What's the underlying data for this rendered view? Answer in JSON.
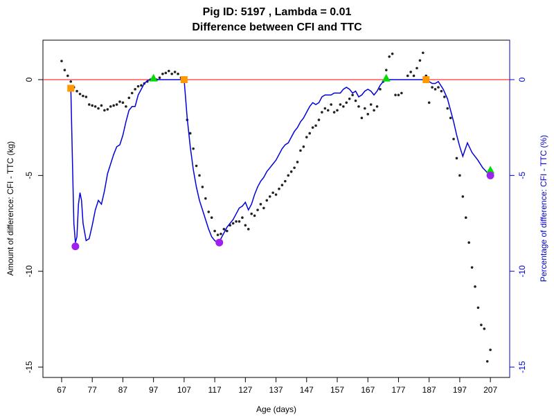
{
  "chart_data": {
    "type": "line",
    "title": "Pig ID: 5197 , Lambda = 0.01",
    "subtitle": "Difference between CFI and TTC",
    "x_label": "Age (days)",
    "y_label": "Amount of difference: CFI - TTC (kg)",
    "y2_label": "Percentage of difference: CFI - TTC (%)",
    "y2_color": "#0000cc",
    "xlim": [
      60.9,
      213.3
    ],
    "ylim": [
      -15.54,
      2.06
    ],
    "y2lim": [
      -15.54,
      2.06
    ],
    "xticks": [
      67,
      77,
      87,
      97,
      107,
      117,
      127,
      137,
      147,
      157,
      167,
      177,
      187,
      197,
      207
    ],
    "yticks": [
      -15,
      -10,
      -5,
      0
    ],
    "y2ticks": [
      -15,
      -10,
      -5,
      0
    ],
    "reference_line": {
      "value": 0,
      "color": "#ff0000"
    },
    "series": [
      {
        "style": "points",
        "color": "#222222",
        "x": [
          67,
          68,
          69,
          70,
          71,
          72,
          73,
          74,
          75,
          76,
          77,
          78,
          79,
          80,
          81,
          82,
          83,
          84,
          85,
          86,
          87,
          88,
          89,
          90,
          91,
          92,
          93,
          94,
          95,
          96,
          97,
          98,
          99,
          100,
          101,
          102,
          103,
          104,
          105,
          106,
          107,
          108,
          109,
          110,
          111,
          112,
          113,
          114,
          115,
          116,
          117,
          118,
          119,
          120,
          121,
          122,
          123,
          124,
          125,
          126,
          127,
          128,
          129,
          130,
          131,
          132,
          133,
          134,
          135,
          136,
          137,
          138,
          139,
          140,
          141,
          142,
          143,
          144,
          145,
          146,
          147,
          148,
          149,
          150,
          151,
          152,
          153,
          154,
          155,
          156,
          157,
          158,
          159,
          160,
          161,
          162,
          163,
          164,
          165,
          166,
          167,
          168,
          169,
          170,
          171,
          172,
          173,
          174,
          175,
          176,
          177,
          178,
          180,
          181,
          182,
          183,
          184,
          185,
          186,
          187,
          188,
          189,
          190,
          191,
          192,
          193,
          194,
          195,
          196,
          197,
          198,
          199,
          200,
          201,
          202,
          203,
          204,
          205,
          206,
          207
        ],
        "values": [
          0.97,
          0.5,
          0.2,
          -0.1,
          -0.4,
          -0.6,
          -0.75,
          -0.85,
          -0.9,
          -1.3,
          -1.35,
          -1.4,
          -1.5,
          -1.35,
          -1.6,
          -1.55,
          -1.4,
          -1.35,
          -1.3,
          -1.15,
          -1.2,
          -1.4,
          -0.95,
          -0.7,
          -0.5,
          -0.35,
          -0.3,
          -0.2,
          -0.1,
          0.0,
          0.1,
          0.0,
          0.1,
          0.3,
          0.35,
          0.45,
          0.3,
          0.4,
          0.3,
          0.1,
          0.0,
          -2.1,
          -2.8,
          -3.6,
          -4.5,
          -5.0,
          -5.6,
          -6.2,
          -6.9,
          -7.2,
          -7.9,
          -8.1,
          -8.05,
          -7.8,
          -7.9,
          -7.6,
          -7.5,
          -7.4,
          -7.4,
          -7.2,
          -7.6,
          -7.8,
          -7.0,
          -7.1,
          -6.8,
          -6.5,
          -6.7,
          -6.3,
          -6.1,
          -5.9,
          -6.0,
          -5.7,
          -5.5,
          -5.3,
          -5.0,
          -4.8,
          -4.6,
          -4.3,
          -3.7,
          -3.5,
          -3.0,
          -2.8,
          -2.5,
          -2.4,
          -2.1,
          -1.7,
          -1.5,
          -1.6,
          -1.3,
          -1.7,
          -1.6,
          -1.3,
          -1.4,
          -1.2,
          -1.0,
          -0.8,
          -1.1,
          -1.4,
          -2.0,
          -1.5,
          -1.8,
          -1.3,
          -1.6,
          -1.4,
          -0.5,
          -0.1,
          0.5,
          1.2,
          1.35,
          -0.8,
          -0.8,
          -0.7,
          0.2,
          0.4,
          0.2,
          0.6,
          1.0,
          1.4,
          0.2,
          -1.2,
          -0.4,
          -0.5,
          -0.4,
          -0.6,
          -0.9,
          -1.5,
          -2.0,
          -3.1,
          -4.1,
          -5.0,
          -6.1,
          -7.2,
          -8.5,
          -9.8,
          -10.8,
          -11.9,
          -12.8,
          -13.0,
          -14.7,
          -14.1
        ]
      },
      {
        "style": "line",
        "color": "#0000dd",
        "axis": "y2",
        "x": [
          70,
          70.5,
          71,
          71.5,
          72,
          72.5,
          73,
          73.5,
          74,
          75,
          76,
          77,
          78,
          79,
          80,
          81,
          82,
          83,
          84,
          85,
          86,
          87,
          88,
          89,
          90,
          91,
          92,
          93,
          94,
          95,
          96,
          97,
          107,
          108,
          109,
          110,
          111,
          112,
          113,
          114,
          115,
          116,
          117,
          118,
          119,
          120,
          121,
          122,
          123,
          124,
          125,
          126,
          127,
          128,
          129,
          130,
          131,
          132,
          133,
          134,
          135,
          136,
          137,
          138,
          139,
          140,
          141,
          142,
          143,
          144,
          145,
          146,
          147,
          148,
          149,
          150,
          151,
          152,
          153,
          154,
          155,
          156,
          157,
          158,
          159,
          160,
          161,
          162,
          163,
          164,
          165,
          166,
          167,
          168,
          169,
          170,
          171,
          172,
          173,
          186,
          187,
          188,
          189,
          190,
          191.6,
          193,
          194,
          195,
          196,
          197,
          198,
          199.5,
          201,
          202.9,
          204.5,
          206.3,
          207
        ],
        "values": [
          -0.4,
          -4,
          -7.5,
          -8.5,
          -8.2,
          -6.5,
          -5.9,
          -6.3,
          -7.5,
          -8.4,
          -8.3,
          -7.6,
          -6.8,
          -6.3,
          -6.5,
          -5.8,
          -4.9,
          -4.4,
          -3.9,
          -3.5,
          -3.4,
          -2.9,
          -2.2,
          -1.6,
          -1.4,
          -1.4,
          -0.8,
          -0.5,
          -0.2,
          -0.05,
          0,
          0,
          0,
          -2,
          -3.5,
          -4.7,
          -5.6,
          -6.3,
          -6.8,
          -7.3,
          -7.8,
          -8.2,
          -8.4,
          -8.5,
          -8.3,
          -8.0,
          -7.7,
          -7.5,
          -7.3,
          -7.0,
          -6.7,
          -6.6,
          -6.4,
          -6.8,
          -6.5,
          -6.0,
          -5.6,
          -5.3,
          -5.1,
          -4.8,
          -4.6,
          -4.4,
          -4.2,
          -3.9,
          -3.6,
          -3.4,
          -3.3,
          -3.0,
          -2.7,
          -2.5,
          -2.2,
          -2.0,
          -1.7,
          -1.4,
          -1.2,
          -1.3,
          -1.2,
          -0.9,
          -0.8,
          -0.8,
          -0.8,
          -0.7,
          -0.7,
          -0.7,
          -0.5,
          -0.4,
          -0.5,
          -0.7,
          -0.6,
          -0.9,
          -0.8,
          -0.6,
          -0.5,
          -0.6,
          -0.8,
          -0.6,
          -0.3,
          -0.1,
          0,
          0,
          -0.1,
          -0.2,
          -0.2,
          -0.1,
          -0.5,
          -1.0,
          -1.6,
          -2.2,
          -2.9,
          -3.5,
          -4.0,
          -3.3,
          -3.8,
          -4.2,
          -4.6,
          -4.9,
          -5.0
        ]
      },
      {
        "style": "square",
        "color": "#ff9900",
        "axis": "y2",
        "x": [
          70,
          107,
          186
        ],
        "values": [
          -0.45,
          0,
          0
        ]
      },
      {
        "style": "triangle",
        "color": "#00dd00",
        "axis": "y2",
        "x": [
          97,
          173,
          207
        ],
        "values": [
          0.05,
          0.05,
          -4.75
        ]
      },
      {
        "style": "circle",
        "color": "#a020f0",
        "axis": "y2",
        "x": [
          71.5,
          118.5,
          207
        ],
        "values": [
          -8.7,
          -8.5,
          -5.0
        ]
      }
    ]
  }
}
